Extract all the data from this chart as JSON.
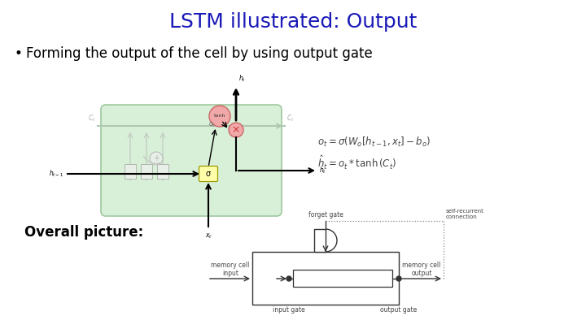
{
  "title": "LSTM illustrated: Output",
  "title_color": "#1a1ab8",
  "title_fontsize": 18,
  "bullet_text": "Forming the output of the cell by using output gate",
  "bullet_fontsize": 12,
  "overall_label": "Overall picture:",
  "overall_fontsize": 12,
  "bg_color": "#ffffff",
  "formula1": "$o_t = \\sigma \\left(W_o \\left[h_{t-1}, x_t\\right] - b_o\\right)$",
  "formula2": "$h_t = o_t * \\tanh\\left(C_t\\right)$",
  "green_fill": "#d8efd8",
  "green_edge": "#a0c8a0"
}
